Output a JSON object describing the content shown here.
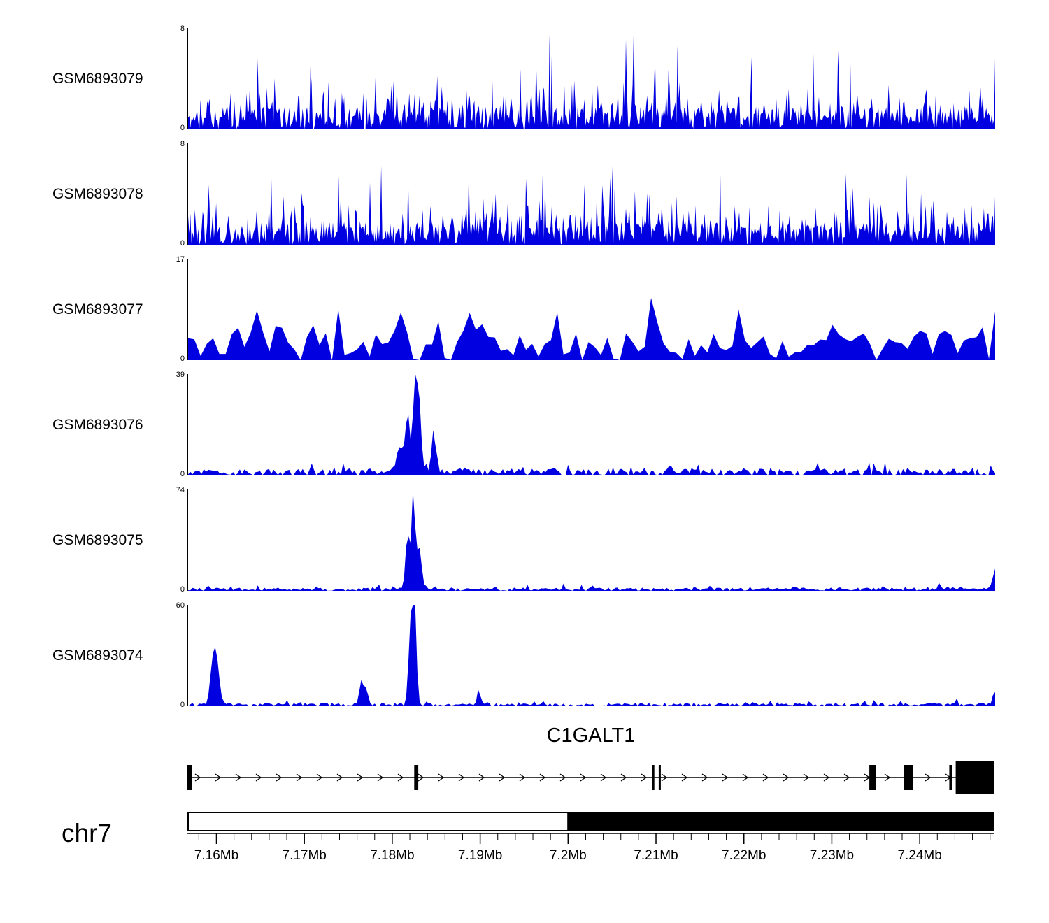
{
  "figure": {
    "background": "#ffffff"
  },
  "colors": {
    "signal": "#0000e0",
    "axis": "#000000",
    "text": "#000000",
    "gene": "#000000"
  },
  "chart_data": {
    "type": "area",
    "description": "Genome browser read-coverage tracks over the C1GALT1 locus on chr7",
    "region": {
      "chromosome": "chr7",
      "start_mb": 7.1567,
      "end_mb": 7.2485
    },
    "chromosome_label": "chr7",
    "tracks": [
      {
        "label": "GSM6893079",
        "ymin": 0,
        "ymax": 8,
        "seed": 11,
        "samples": 720,
        "noise": {
          "base": 1.8,
          "mid_p": 0.3,
          "mid_h": 2.4,
          "tall_p": 0.05,
          "tall_h": 5.0
        },
        "peaks": []
      },
      {
        "label": "GSM6893078",
        "ymin": 0,
        "ymax": 8,
        "seed": 47,
        "samples": 720,
        "noise": {
          "base": 1.8,
          "mid_p": 0.3,
          "mid_h": 2.4,
          "tall_p": 0.05,
          "tall_h": 5.0
        },
        "peaks": []
      },
      {
        "label": "GSM6893077",
        "ymin": 0,
        "ymax": 17,
        "seed": 83,
        "samples": 130,
        "noise": {
          "base": 5.2,
          "mid_p": 0.25,
          "mid_h": 4.5,
          "tall_p": 0.035,
          "tall_h": 11,
          "zero_p": 0.06
        },
        "peaks": []
      },
      {
        "label": "GSM6893076",
        "ymin": 0,
        "ymax": 39,
        "seed": 129,
        "samples": 360,
        "noise": {
          "base": 2.6,
          "mid_p": 0.2,
          "mid_h": 2.4,
          "tall_p": 0.015,
          "tall_h": 3.2
        },
        "peaks": [
          {
            "pos": 0.262,
            "h": 10,
            "w": 0.004
          },
          {
            "pos": 0.272,
            "h": 22,
            "w": 0.003
          },
          {
            "pos": 0.281,
            "h": 37,
            "w": 0.0022
          },
          {
            "pos": 0.286,
            "h": 28,
            "w": 0.0025
          },
          {
            "pos": 0.304,
            "h": 13,
            "w": 0.003
          }
        ]
      },
      {
        "label": "GSM6893075",
        "ymin": 0,
        "ymax": 74,
        "seed": 211,
        "samples": 360,
        "noise": {
          "base": 2.4,
          "mid_p": 0.15,
          "mid_h": 2.2,
          "tall_p": 0.012,
          "tall_h": 3.0
        },
        "peaks": [
          {
            "pos": 0.272,
            "h": 42,
            "w": 0.0025
          },
          {
            "pos": 0.279,
            "h": 72,
            "w": 0.002
          },
          {
            "pos": 0.286,
            "h": 32,
            "w": 0.003
          },
          {
            "pos": 0.999,
            "h": 18,
            "w": 0.0015
          }
        ]
      },
      {
        "label": "GSM6893074",
        "ymin": 0,
        "ymax": 60,
        "seed": 307,
        "samples": 360,
        "noise": {
          "base": 2.0,
          "mid_p": 0.15,
          "mid_h": 2.0,
          "tall_p": 0.012,
          "tall_h": 3.0
        },
        "peaks": [
          {
            "pos": 0.03,
            "h": 18,
            "w": 0.003
          },
          {
            "pos": 0.035,
            "h": 27,
            "w": 0.0035
          },
          {
            "pos": 0.215,
            "h": 14,
            "w": 0.0025
          },
          {
            "pos": 0.221,
            "h": 9,
            "w": 0.002
          },
          {
            "pos": 0.276,
            "h": 52,
            "w": 0.0025
          },
          {
            "pos": 0.281,
            "h": 58,
            "w": 0.002
          },
          {
            "pos": 0.36,
            "h": 8,
            "w": 0.002
          },
          {
            "pos": 0.999,
            "h": 10,
            "w": 0.0015
          }
        ]
      }
    ],
    "gene": {
      "name": "C1GALT1",
      "strand": "right",
      "exons": [
        {
          "pos": 0.0,
          "w": 0.006,
          "size": "tall"
        },
        {
          "pos": 0.281,
          "w": 0.005,
          "size": "tall"
        },
        {
          "pos": 0.576,
          "w": 0.0025,
          "size": "tall"
        },
        {
          "pos": 0.584,
          "w": 0.0025,
          "size": "tall"
        },
        {
          "pos": 0.845,
          "w": 0.008,
          "size": "tall"
        },
        {
          "pos": 0.888,
          "w": 0.011,
          "size": "tall"
        },
        {
          "pos": 0.944,
          "w": 0.0035,
          "size": "tall"
        },
        {
          "pos": 0.952,
          "w": 0.048,
          "size": "big"
        }
      ]
    },
    "ideogram": {
      "split_mb": 7.2
    },
    "axis": {
      "minor_step_mb": 0.002,
      "major_ticks": [
        {
          "mb": 7.16,
          "label": "7.16Mb"
        },
        {
          "mb": 7.17,
          "label": "7.17Mb"
        },
        {
          "mb": 7.18,
          "label": "7.18Mb"
        },
        {
          "mb": 7.19,
          "label": "7.19Mb"
        },
        {
          "mb": 7.2,
          "label": "7.2Mb"
        },
        {
          "mb": 7.21,
          "label": "7.21Mb"
        },
        {
          "mb": 7.22,
          "label": "7.22Mb"
        },
        {
          "mb": 7.23,
          "label": "7.23Mb"
        },
        {
          "mb": 7.24,
          "label": "7.24Mb"
        }
      ]
    }
  }
}
